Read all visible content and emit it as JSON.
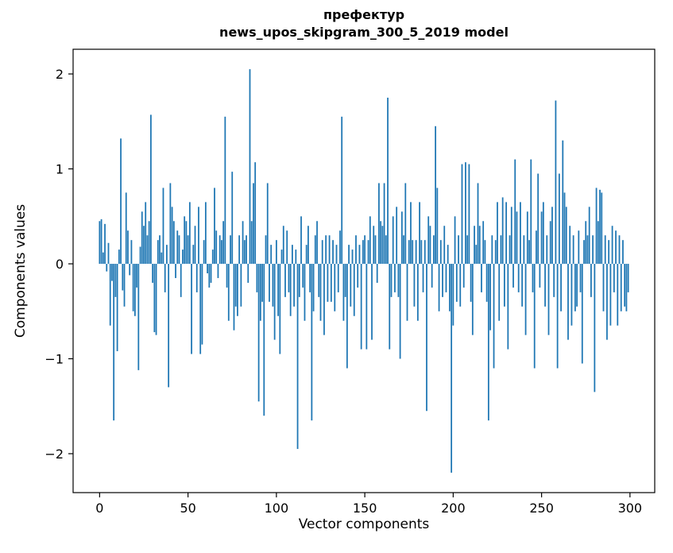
{
  "figure": {
    "title_line1": "префектур",
    "title_line2": "news_upos_skipgram_300_5_2019 model",
    "xlabel": "Vector components",
    "ylabel": "Components values"
  },
  "chart_data": {
    "type": "bar",
    "title": "префектур — news_upos_skipgram_300_5_2019 model",
    "xlabel": "Vector components",
    "ylabel": "Components values",
    "bar_color": "#1f77b4",
    "frame_color": "#000000",
    "grid": false,
    "legend": false,
    "xlim": [
      -15,
      314
    ],
    "ylim": [
      -2.41,
      2.26
    ],
    "x_ticks": [
      0,
      50,
      100,
      150,
      200,
      250,
      300
    ],
    "x_tick_labels": [
      "0",
      "50",
      "100",
      "150",
      "200",
      "250",
      "300"
    ],
    "y_ticks": [
      -2,
      -1,
      0,
      1,
      2
    ],
    "y_tick_labels": [
      "−2",
      "−1",
      "0",
      "1",
      "2"
    ],
    "values": [
      0.45,
      0.47,
      0.12,
      0.42,
      -0.08,
      0.22,
      -0.65,
      -0.18,
      -1.65,
      -0.35,
      -0.92,
      0.15,
      1.32,
      -0.28,
      -0.45,
      0.75,
      0.35,
      -0.12,
      0.25,
      -0.5,
      -0.55,
      -0.25,
      -1.12,
      0.18,
      0.55,
      0.4,
      0.65,
      0.3,
      0.45,
      1.57,
      -0.2,
      -0.72,
      -0.75,
      0.25,
      0.3,
      0.12,
      0.8,
      -0.3,
      0.2,
      -1.3,
      0.85,
      0.6,
      0.45,
      -0.15,
      0.35,
      0.3,
      -0.35,
      0.15,
      0.5,
      0.45,
      0.3,
      0.65,
      -0.95,
      0.2,
      0.4,
      -0.3,
      0.6,
      -0.95,
      -0.85,
      0.25,
      0.65,
      -0.1,
      -0.25,
      -0.2,
      0.15,
      0.8,
      0.35,
      -0.15,
      0.3,
      0.25,
      0.45,
      1.55,
      -0.25,
      -0.6,
      0.3,
      0.97,
      -0.7,
      -0.45,
      -0.55,
      0.3,
      -0.45,
      0.45,
      0.25,
      0.3,
      -0.2,
      2.05,
      0.45,
      0.85,
      1.07,
      -0.3,
      -1.45,
      -0.6,
      -0.4,
      -1.6,
      0.3,
      0.85,
      -0.4,
      0.2,
      -0.45,
      -0.8,
      0.25,
      -0.55,
      -0.95,
      0.15,
      0.4,
      -0.35,
      0.35,
      -0.3,
      -0.55,
      0.2,
      -0.45,
      0.15,
      -1.95,
      -0.35,
      0.5,
      -0.25,
      -0.6,
      0.2,
      0.4,
      -0.3,
      -1.65,
      -0.5,
      0.3,
      0.45,
      -0.35,
      -0.6,
      0.25,
      -0.75,
      0.3,
      -0.4,
      0.3,
      -0.4,
      0.25,
      -0.5,
      0.2,
      -0.3,
      0.35,
      1.55,
      -0.6,
      -0.35,
      -1.1,
      0.2,
      -0.45,
      0.15,
      -0.55,
      0.3,
      -0.25,
      0.2,
      -0.9,
      0.25,
      0.3,
      -0.9,
      0.25,
      0.5,
      -0.8,
      0.4,
      0.3,
      -0.2,
      0.85,
      0.45,
      0.4,
      0.85,
      0.3,
      1.75,
      -0.9,
      -0.35,
      0.5,
      -0.3,
      0.6,
      -0.35,
      -1.0,
      0.55,
      0.3,
      0.85,
      -0.6,
      0.25,
      0.65,
      0.25,
      -0.45,
      0.25,
      -0.6,
      0.65,
      0.25,
      -0.3,
      0.25,
      -1.55,
      0.5,
      0.4,
      -0.25,
      0.3,
      1.45,
      0.8,
      -0.5,
      0.25,
      -0.35,
      0.4,
      -0.3,
      0.2,
      -0.5,
      -2.2,
      -0.65,
      0.5,
      -0.4,
      0.3,
      -0.45,
      1.05,
      -0.25,
      1.07,
      0.3,
      1.05,
      -0.4,
      -0.75,
      0.4,
      0.2,
      0.85,
      0.4,
      -0.3,
      0.45,
      0.25,
      -0.4,
      -1.65,
      -0.7,
      0.3,
      -1.1,
      0.25,
      0.65,
      -0.6,
      0.3,
      0.7,
      -0.45,
      0.65,
      -0.9,
      0.3,
      0.6,
      -0.25,
      1.1,
      0.55,
      -0.3,
      0.65,
      -0.45,
      0.3,
      -0.75,
      0.55,
      0.25,
      1.1,
      -0.3,
      -1.1,
      0.35,
      0.95,
      -0.25,
      0.55,
      0.65,
      -0.45,
      0.3,
      -0.75,
      0.45,
      0.6,
      -0.35,
      1.72,
      -1.1,
      0.95,
      -0.5,
      1.3,
      0.75,
      0.6,
      -0.8,
      0.4,
      -0.65,
      0.3,
      -0.5,
      -0.45,
      0.35,
      -0.3,
      -1.05,
      0.25,
      0.45,
      0.3,
      0.6,
      -0.35,
      0.3,
      -1.35,
      0.8,
      0.45,
      0.78,
      0.75,
      -0.5,
      0.3,
      -0.8,
      0.25,
      -0.65,
      0.4,
      -0.3,
      0.35,
      -0.65,
      0.3,
      -0.5,
      0.25,
      -0.45,
      -0.5,
      -0.3
    ]
  }
}
